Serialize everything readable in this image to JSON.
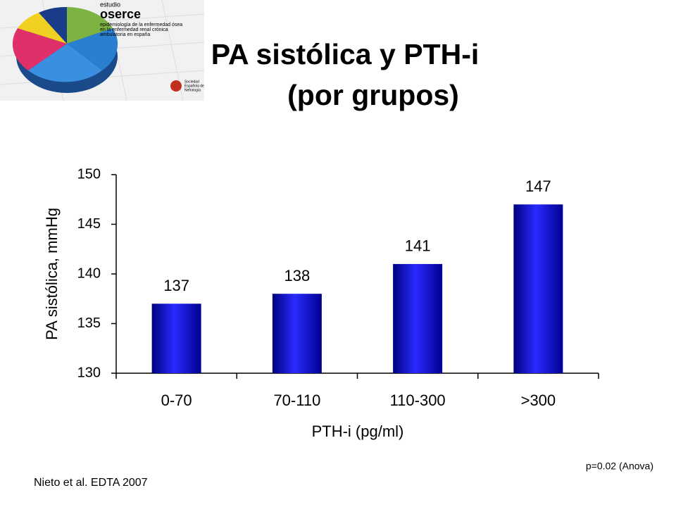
{
  "logo": {
    "study": "estudio",
    "name": "oserce",
    "tagline": [
      "epidemiología de la enfermedad ósea",
      "en la enfermedad renal crónica",
      "ambulatoria en españa"
    ],
    "society": [
      "Sociedad",
      "Española de",
      "Nefrología"
    ]
  },
  "chart_data": {
    "type": "bar",
    "title": "PA sistólica y PTH-i",
    "subtitle": "(por grupos)",
    "x_label": "PTH-i (pg/ml)",
    "y_label": "PA sistólica, mmHg",
    "categories": [
      "0-70",
      "70-110",
      "110-300",
      ">300"
    ],
    "values": [
      137,
      138,
      141,
      147
    ],
    "color": "#1a1ae0",
    "ylim": [
      130,
      150
    ],
    "yticks": [
      130,
      135,
      140,
      145,
      150
    ],
    "annotations": [
      "p=0.02 (Anova)",
      "Nieto et al. EDTA 2007"
    ]
  }
}
